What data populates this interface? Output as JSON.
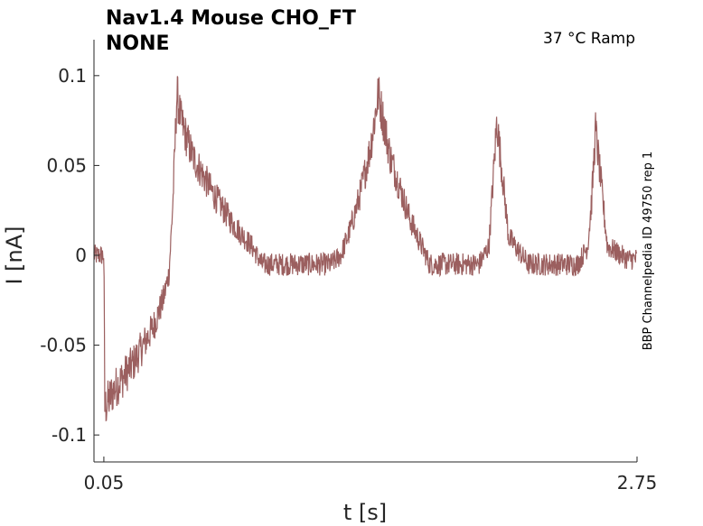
{
  "chart_data": {
    "type": "line",
    "title_lines": [
      "Nav1.4  Mouse  CHO_FT",
      "NONE"
    ],
    "conditions": "37 °C  Ramp",
    "side_label": "BBP Channelpedia ID 49750 rep 1",
    "xlabel": "t [s]",
    "ylabel": "I [nA]",
    "xlim": [
      0.0,
      2.75
    ],
    "ylim": [
      -0.115,
      0.12
    ],
    "x_ticks": [
      0.05,
      2.75
    ],
    "x_tick_labels": [
      "0.05",
      "2.75"
    ],
    "y_ticks": [
      0.1,
      0.05,
      0,
      -0.05,
      -0.1
    ],
    "y_tick_labels": [
      "0.1",
      "0.05",
      "0",
      "-0.05",
      "-0.1"
    ],
    "grid": false,
    "colors": {
      "trace": "#9b5f5f",
      "axis": "#262626"
    },
    "series": [
      {
        "x": [
          0.0,
          0.05,
          0.055,
          0.1,
          0.2,
          0.3,
          0.35,
          0.38,
          0.4,
          0.42,
          0.44,
          0.5,
          0.6,
          0.7,
          0.8,
          0.85,
          0.9,
          1.0,
          1.1,
          1.2,
          1.25,
          1.3,
          1.35,
          1.4,
          1.42,
          1.44,
          1.5,
          1.6,
          1.7,
          1.8,
          1.9,
          1.95,
          2.0,
          2.02,
          2.04,
          2.1,
          2.2,
          2.3,
          2.4,
          2.45,
          2.5,
          2.52,
          2.54,
          2.6,
          2.7,
          2.75
        ],
        "y": [
          0.0,
          0.0,
          -0.085,
          -0.075,
          -0.06,
          -0.04,
          -0.025,
          -0.01,
          0.03,
          0.09,
          0.075,
          0.055,
          0.035,
          0.018,
          0.005,
          -0.005,
          -0.005,
          -0.005,
          -0.005,
          -0.005,
          0.0,
          0.015,
          0.035,
          0.06,
          0.075,
          0.09,
          0.055,
          0.02,
          -0.005,
          -0.005,
          -0.005,
          -0.005,
          0.005,
          0.04,
          0.075,
          0.01,
          -0.005,
          -0.005,
          -0.005,
          -0.005,
          0.005,
          0.03,
          0.07,
          0.005,
          -0.002,
          -0.002
        ]
      }
    ]
  }
}
